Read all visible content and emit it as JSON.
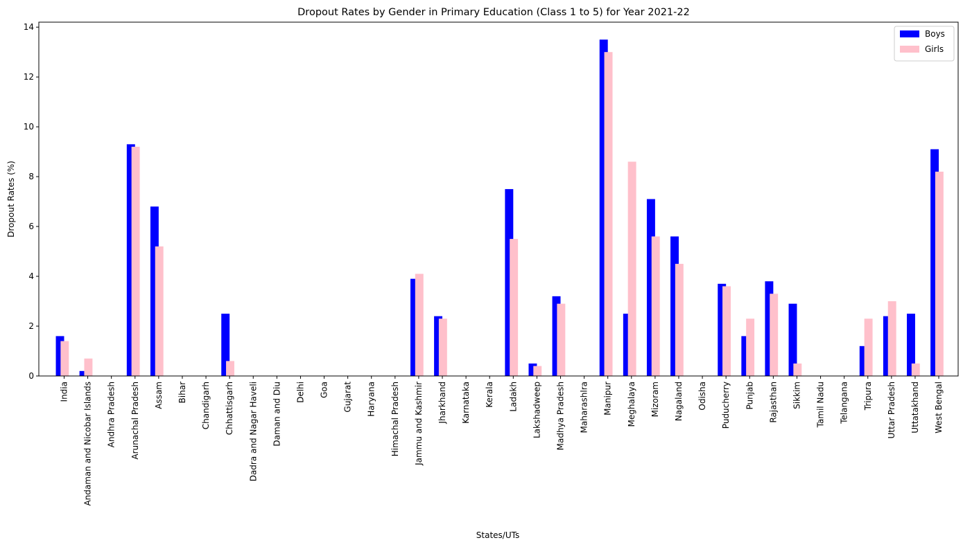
{
  "chart_data": {
    "type": "bar",
    "title": "Dropout Rates by Gender in Primary Education (Class 1 to 5) for Year 2021-22",
    "xlabel": "States/UTs",
    "ylabel": "Dropout Rates (%)",
    "ylim": [
      0,
      14.2
    ],
    "yticks": [
      0,
      2,
      4,
      6,
      8,
      10,
      12,
      14
    ],
    "grid": false,
    "legend_position": "top-right",
    "categories": [
      "India",
      "Andaman and Nicobar Islands",
      "Andhra Pradesh",
      "Arunachal Pradesh",
      "Assam",
      "Bihar",
      "Chandigarh",
      "Chhattisgarh",
      "Dadra and Nagar Haveli",
      "Daman and Diu",
      "Delhi",
      "Goa",
      "Gujarat",
      "Haryana",
      "Himachal Pradesh",
      "Jammu and Kashmir",
      "Jharkhand",
      "Karnataka",
      "Kerala",
      "Ladakh",
      "Lakshadweep",
      "Madhya Pradesh",
      "Maharashlra",
      "Manipur",
      "Meghalaya",
      "Mizoram",
      "Nagaland",
      "Odisha",
      "Puducherry",
      "Punjab",
      "Rajasthan",
      "Sikkim",
      "Tamil Nadu",
      "Telangana",
      "Tripura",
      "Uttar Pradesh",
      "Uttatakhand",
      "West Bengal"
    ],
    "series": [
      {
        "name": "Boys",
        "color": "#0000ff",
        "values": [
          1.6,
          0.2,
          0,
          9.3,
          6.8,
          0,
          0,
          2.5,
          0,
          0,
          0,
          0,
          0,
          0,
          0,
          3.9,
          2.4,
          0,
          0,
          7.5,
          0.5,
          3.2,
          0,
          13.5,
          2.5,
          7.1,
          5.6,
          0,
          3.7,
          1.6,
          3.8,
          2.9,
          0,
          0,
          1.2,
          2.4,
          2.5,
          9.1
        ]
      },
      {
        "name": "Girls",
        "color": "#ffc0cb",
        "values": [
          1.4,
          0.7,
          0,
          9.2,
          5.2,
          0,
          0,
          0.6,
          0,
          0,
          0,
          0,
          0,
          0,
          0,
          4.1,
          2.3,
          0,
          0,
          5.5,
          0.4,
          2.9,
          0,
          13.0,
          8.6,
          5.6,
          4.5,
          0,
          3.6,
          2.3,
          3.3,
          0.5,
          0,
          0,
          2.3,
          3.0,
          0.5,
          8.2
        ]
      }
    ]
  }
}
